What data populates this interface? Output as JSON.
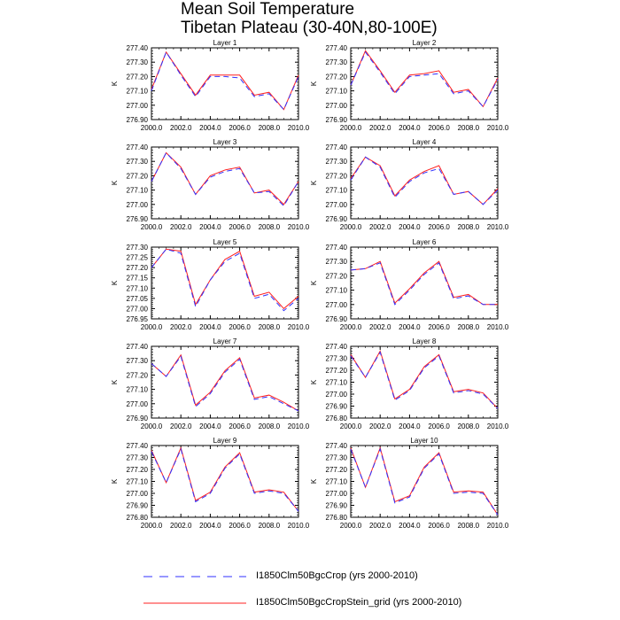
{
  "title": "Mean Soil Temperature",
  "subtitle": "Tibetan Plateau (30-40N,80-100E)",
  "ylabel": "K",
  "xticks": [
    "2000.0",
    "2002.0",
    "2004.0",
    "2006.0",
    "2008.0",
    "2010.0"
  ],
  "legend": [
    {
      "name": "I1850Clm50BgcCrop (yrs 2000-2010)",
      "color": "#3030ff",
      "style": "dashed"
    },
    {
      "name": "I1850Clm50BgcCropStein_grid (yrs 2000-2010)",
      "color": "#ff2020",
      "style": "solid"
    }
  ],
  "chart_data": [
    {
      "type": "line",
      "title": "Layer 1",
      "ylim": [
        276.9,
        277.4
      ],
      "yticks": [
        "277.40",
        "277.30",
        "277.20",
        "277.10",
        "277.00",
        "276.90"
      ],
      "x": [
        2000,
        2001,
        2002,
        2003,
        2004,
        2005,
        2006,
        2007,
        2008,
        2009,
        2010
      ],
      "series": [
        {
          "name": "I1850Clm50BgcCrop (yrs 2000-2010)",
          "values": [
            277.1,
            277.37,
            277.21,
            277.06,
            277.2,
            277.2,
            277.19,
            277.06,
            277.08,
            276.97,
            277.2
          ]
        },
        {
          "name": "I1850Clm50BgcCropStein_grid (yrs 2000-2010)",
          "values": [
            277.11,
            277.37,
            277.22,
            277.07,
            277.21,
            277.21,
            277.21,
            277.07,
            277.09,
            276.97,
            277.21
          ]
        }
      ]
    },
    {
      "type": "line",
      "title": "Layer 2",
      "ylim": [
        276.9,
        277.4
      ],
      "yticks": [
        "277.40",
        "277.30",
        "277.20",
        "277.10",
        "277.00",
        "276.90"
      ],
      "x": [
        2000,
        2001,
        2002,
        2003,
        2004,
        2005,
        2006,
        2007,
        2008,
        2009,
        2010
      ],
      "series": [
        {
          "name": "I1850Clm50BgcCrop (yrs 2000-2010)",
          "values": [
            277.14,
            277.37,
            277.23,
            277.08,
            277.2,
            277.21,
            277.22,
            277.08,
            277.1,
            276.99,
            277.18
          ]
        },
        {
          "name": "I1850Clm50BgcCropStein_grid (yrs 2000-2010)",
          "values": [
            277.14,
            277.38,
            277.24,
            277.09,
            277.21,
            277.22,
            277.24,
            277.09,
            277.11,
            276.99,
            277.19
          ]
        }
      ]
    },
    {
      "type": "line",
      "title": "Layer 3",
      "ylim": [
        276.9,
        277.4
      ],
      "yticks": [
        "277.40",
        "277.30",
        "277.20",
        "277.10",
        "277.00",
        "276.90"
      ],
      "x": [
        2000,
        2001,
        2002,
        2003,
        2004,
        2005,
        2006,
        2007,
        2008,
        2009,
        2010
      ],
      "series": [
        {
          "name": "I1850Clm50BgcCrop (yrs 2000-2010)",
          "values": [
            277.16,
            277.36,
            277.25,
            277.07,
            277.19,
            277.23,
            277.25,
            277.08,
            277.09,
            276.99,
            277.16
          ]
        },
        {
          "name": "I1850Clm50BgcCropStein_grid (yrs 2000-2010)",
          "values": [
            277.16,
            277.36,
            277.26,
            277.07,
            277.2,
            277.24,
            277.26,
            277.08,
            277.1,
            277.0,
            277.16
          ]
        }
      ]
    },
    {
      "type": "line",
      "title": "Layer 4",
      "ylim": [
        276.9,
        277.4
      ],
      "yticks": [
        "277.40",
        "277.30",
        "277.20",
        "277.10",
        "277.00",
        "276.90"
      ],
      "x": [
        2000,
        2001,
        2002,
        2003,
        2004,
        2005,
        2006,
        2007,
        2008,
        2009,
        2010
      ],
      "series": [
        {
          "name": "I1850Clm50BgcCrop (yrs 2000-2010)",
          "values": [
            277.17,
            277.33,
            277.26,
            277.05,
            277.16,
            277.22,
            277.25,
            277.07,
            277.09,
            277.0,
            277.1
          ]
        },
        {
          "name": "I1850Clm50BgcCropStein_grid (yrs 2000-2010)",
          "values": [
            277.18,
            277.33,
            277.27,
            277.06,
            277.17,
            277.23,
            277.27,
            277.07,
            277.09,
            277.0,
            277.11
          ]
        }
      ]
    },
    {
      "type": "line",
      "title": "Layer 5",
      "ylim": [
        276.95,
        277.3
      ],
      "yticks": [
        "277.30",
        "277.25",
        "277.20",
        "277.15",
        "277.10",
        "277.05",
        "277.00",
        "276.95"
      ],
      "x": [
        2000,
        2001,
        2002,
        2003,
        2004,
        2005,
        2006,
        2007,
        2008,
        2009,
        2010
      ],
      "series": [
        {
          "name": "I1850Clm50BgcCrop (yrs 2000-2010)",
          "values": [
            277.2,
            277.29,
            277.27,
            277.01,
            277.14,
            277.23,
            277.27,
            277.05,
            277.07,
            276.99,
            277.05
          ]
        },
        {
          "name": "I1850Clm50BgcCropStein_grid (yrs 2000-2010)",
          "values": [
            277.2,
            277.29,
            277.28,
            277.02,
            277.14,
            277.24,
            277.28,
            277.06,
            277.08,
            277.0,
            277.06
          ]
        }
      ]
    },
    {
      "type": "line",
      "title": "Layer 6",
      "ylim": [
        276.9,
        277.4
      ],
      "yticks": [
        "277.40",
        "277.30",
        "277.20",
        "277.10",
        "277.00",
        "276.90"
      ],
      "x": [
        2000,
        2001,
        2002,
        2003,
        2004,
        2005,
        2006,
        2007,
        2008,
        2009,
        2010
      ],
      "series": [
        {
          "name": "I1850Clm50BgcCrop (yrs 2000-2010)",
          "values": [
            277.24,
            277.25,
            277.29,
            277.0,
            277.1,
            277.21,
            277.29,
            277.04,
            277.06,
            277.0,
            277.0
          ]
        },
        {
          "name": "I1850Clm50BgcCropStein_grid (yrs 2000-2010)",
          "values": [
            277.24,
            277.25,
            277.3,
            277.01,
            277.11,
            277.22,
            277.3,
            277.05,
            277.07,
            277.0,
            277.0
          ]
        }
      ]
    },
    {
      "type": "line",
      "title": "Layer 7",
      "ylim": [
        276.9,
        277.4
      ],
      "yticks": [
        "277.40",
        "277.30",
        "277.20",
        "277.10",
        "277.00",
        "276.90"
      ],
      "x": [
        2000,
        2001,
        2002,
        2003,
        2004,
        2005,
        2006,
        2007,
        2008,
        2009,
        2010
      ],
      "series": [
        {
          "name": "I1850Clm50BgcCrop (yrs 2000-2010)",
          "values": [
            277.28,
            277.19,
            277.33,
            276.98,
            277.07,
            277.22,
            277.31,
            277.03,
            277.05,
            277.0,
            276.95
          ]
        },
        {
          "name": "I1850Clm50BgcCropStein_grid (yrs 2000-2010)",
          "values": [
            277.28,
            277.19,
            277.34,
            276.99,
            277.08,
            277.23,
            277.32,
            277.04,
            277.06,
            277.01,
            276.95
          ]
        }
      ]
    },
    {
      "type": "line",
      "title": "Layer 8",
      "ylim": [
        276.8,
        277.4
      ],
      "yticks": [
        "277.40",
        "277.30",
        "277.20",
        "277.10",
        "277.00",
        "276.90",
        "276.80"
      ],
      "x": [
        2000,
        2001,
        2002,
        2003,
        2004,
        2005,
        2006,
        2007,
        2008,
        2009,
        2010
      ],
      "series": [
        {
          "name": "I1850Clm50BgcCrop (yrs 2000-2010)",
          "values": [
            277.32,
            277.14,
            277.35,
            276.95,
            277.03,
            277.22,
            277.32,
            277.01,
            277.03,
            277.0,
            276.88
          ]
        },
        {
          "name": "I1850Clm50BgcCropStein_grid (yrs 2000-2010)",
          "values": [
            277.33,
            277.14,
            277.36,
            276.96,
            277.04,
            277.23,
            277.33,
            277.02,
            277.04,
            277.01,
            276.88
          ]
        }
      ]
    },
    {
      "type": "line",
      "title": "Layer 9",
      "ylim": [
        276.8,
        277.4
      ],
      "yticks": [
        "277.40",
        "277.30",
        "277.20",
        "277.10",
        "277.00",
        "276.90",
        "276.80"
      ],
      "x": [
        2000,
        2001,
        2002,
        2003,
        2004,
        2005,
        2006,
        2007,
        2008,
        2009,
        2010
      ],
      "series": [
        {
          "name": "I1850Clm50BgcCrop (yrs 2000-2010)",
          "values": [
            277.35,
            277.09,
            277.37,
            276.93,
            277.0,
            277.21,
            277.33,
            277.0,
            277.02,
            277.0,
            276.85
          ]
        },
        {
          "name": "I1850Clm50BgcCropStein_grid (yrs 2000-2010)",
          "values": [
            277.36,
            277.09,
            277.38,
            276.94,
            277.01,
            277.22,
            277.34,
            277.01,
            277.03,
            277.01,
            276.85
          ]
        }
      ]
    },
    {
      "type": "line",
      "title": "Layer 10",
      "ylim": [
        276.8,
        277.4
      ],
      "yticks": [
        "277.40",
        "277.30",
        "277.20",
        "277.10",
        "277.00",
        "276.90",
        "276.80"
      ],
      "x": [
        2000,
        2001,
        2002,
        2003,
        2004,
        2005,
        2006,
        2007,
        2008,
        2009,
        2010
      ],
      "series": [
        {
          "name": "I1850Clm50BgcCrop (yrs 2000-2010)",
          "values": [
            277.37,
            277.05,
            277.37,
            276.92,
            276.97,
            277.21,
            277.33,
            277.0,
            277.01,
            277.0,
            276.82
          ]
        },
        {
          "name": "I1850Clm50BgcCropStein_grid (yrs 2000-2010)",
          "values": [
            277.38,
            277.05,
            277.38,
            276.93,
            276.98,
            277.22,
            277.34,
            277.01,
            277.02,
            277.01,
            276.82
          ]
        }
      ]
    }
  ]
}
